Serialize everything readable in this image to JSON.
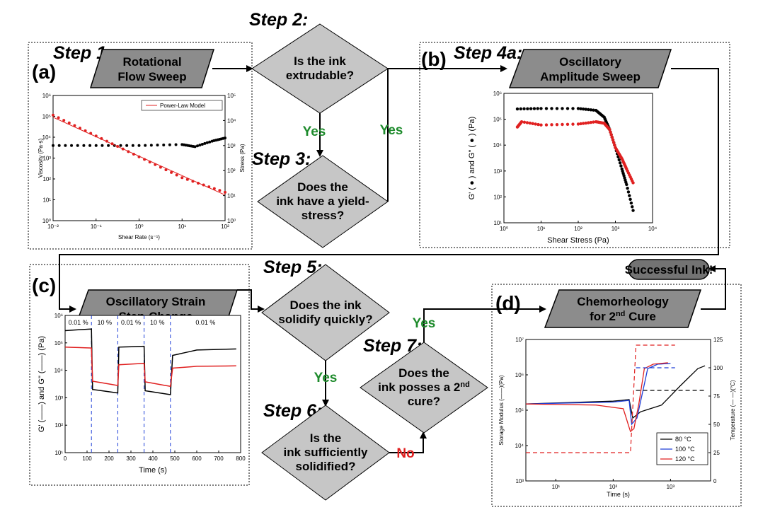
{
  "steps": {
    "s1": "Step 1:",
    "s2": "Step 2:",
    "s3": "Step 3:",
    "s4a": "Step 4a:",
    "s5": "Step 5:",
    "s6": "Step 6:",
    "s7": "Step 7:"
  },
  "panels": {
    "a": "(a)",
    "b": "(b)",
    "c": "(c)",
    "d": "(d)"
  },
  "boxes": {
    "rotational": [
      "Rotational",
      "Flow Sweep"
    ],
    "amplitude": [
      "Oscillatory",
      "Amplitude Sweep"
    ],
    "strain": [
      "Oscillatory Strain",
      "Step-Change"
    ],
    "chemo_l1": "Chemorheology",
    "chemo_l2_pre": "for 2",
    "chemo_l2_sup": "nd",
    "chemo_l2_post": " Cure",
    "success": "Successful Ink!"
  },
  "diamonds": {
    "extrudable": [
      "Is the ink",
      "extrudable?"
    ],
    "yield": [
      "Does the",
      "ink have a yield-",
      "stress?"
    ],
    "solidify": [
      "Does the ink",
      "solidify quickly?"
    ],
    "solidified": [
      "Is the",
      "ink sufficiently",
      "solidified?"
    ],
    "cure_l1": "Does the",
    "cure_l2_pre": "ink posses a 2",
    "cure_l2_sup": "nd",
    "cure_l3": "cure?"
  },
  "answers": {
    "yes": "Yes",
    "no": "No"
  },
  "colors": {
    "box": "#8c8c8c",
    "diamond": "#c6c6c6",
    "success": "#737373",
    "yes": "#1e8b2c",
    "no": "#e02020",
    "red": "#e02020",
    "blue": "#1f3fd8",
    "orange": "#f08a1c"
  },
  "chart_data": [
    {
      "panel": "(a)",
      "type": "scatter",
      "xlabel": "Shear Rate (s⁻¹)",
      "ylabel_left": "Viscosity (Pa·s)",
      "ylabel_right": "Stress (Pa)",
      "x_scale": "log",
      "y_scale": "log",
      "xlim": [
        0.01,
        100
      ],
      "ylim_left": [
        1,
        1000000
      ],
      "ylim_right": [
        1,
        100000
      ],
      "x_ticks": [
        "10⁻²",
        "10⁻¹",
        "10⁰",
        "10¹",
        "10²"
      ],
      "y_ticks_left": [
        "10⁰",
        "10¹",
        "10²",
        "10³",
        "10⁴",
        "10⁵",
        "10⁶"
      ],
      "y_ticks_right": [
        "10⁰",
        "10¹",
        "10²",
        "10³",
        "10⁴",
        "10⁵"
      ],
      "legend": "Power-Law Model",
      "series": [
        {
          "name": "Viscosity",
          "color": "#e02020",
          "x": [
            0.01,
            0.1,
            1,
            10,
            100
          ],
          "y": [
            100000,
            10000,
            1000,
            100,
            20
          ]
        },
        {
          "name": "Stress",
          "color": "#000000",
          "x": [
            0.01,
            0.1,
            1,
            10,
            20,
            50,
            100
          ],
          "y": [
            1000,
            1000,
            1000,
            1100,
            900,
            1500,
            2000
          ]
        },
        {
          "name": "Power-Law Model",
          "color": "#e02020",
          "x": [
            0.01,
            100
          ],
          "y": [
            90000,
            17
          ]
        }
      ]
    },
    {
      "panel": "(b)",
      "type": "scatter",
      "xlabel": "Shear Stress (Pa)",
      "ylabel": "G' (  ●  ) and G\" (  ●  ) (Pa)",
      "x_scale": "log",
      "y_scale": "log",
      "xlim": [
        1,
        10000
      ],
      "ylim": [
        10,
        1000000
      ],
      "x_ticks": [
        "10⁰",
        "10¹",
        "10²",
        "10³",
        "10⁴"
      ],
      "y_ticks": [
        "10¹",
        "10²",
        "10³",
        "10⁴",
        "10⁵",
        "10⁶"
      ],
      "series": [
        {
          "name": "G'",
          "color": "#000000",
          "x": [
            2.3,
            10,
            100,
            300,
            500,
            700,
            1000,
            1500,
            2000,
            3000
          ],
          "y": [
            250000,
            260000,
            260000,
            220000,
            120000,
            40000,
            8000,
            1200,
            300,
            30
          ]
        },
        {
          "name": "G\"",
          "color": "#e02020",
          "x": [
            2.3,
            3,
            10,
            100,
            300,
            500,
            700,
            1000,
            1500,
            2000,
            3000
          ],
          "y": [
            50000,
            80000,
            60000,
            65000,
            80000,
            70000,
            40000,
            8000,
            3000,
            1200,
            350
          ]
        }
      ]
    },
    {
      "panel": "(c)",
      "type": "line",
      "xlabel": "Time (s)",
      "ylabel": "G' (——) and G\" (——) (Pa)",
      "y_scale": "log",
      "xlim": [
        0,
        800
      ],
      "ylim": [
        10,
        1000000
      ],
      "x_ticks": [
        "0",
        "100",
        "200",
        "300",
        "400",
        "500",
        "600",
        "700",
        "800"
      ],
      "y_ticks": [
        "10¹",
        "10²",
        "10³",
        "10⁴",
        "10⁵",
        "10⁶"
      ],
      "annotations": [
        {
          "text": "0.01 %",
          "color": "#f08a1c"
        },
        {
          "text": "10 %",
          "color": "#1f3fd8"
        },
        {
          "text": "0.01 %",
          "color": "#f08a1c"
        },
        {
          "text": "10 %",
          "color": "#1f3fd8"
        },
        {
          "text": "0.01 %",
          "color": "#f08a1c"
        }
      ],
      "step_times": [
        120,
        240,
        360,
        480
      ],
      "series": [
        {
          "name": "G'",
          "color": "#000000",
          "x": [
            0,
            120,
            125,
            240,
            245,
            360,
            365,
            480,
            490,
            600,
            780
          ],
          "y": [
            280000,
            320000,
            2000,
            1500,
            70000,
            75000,
            1800,
            1300,
            35000,
            55000,
            60000
          ]
        },
        {
          "name": "G\"",
          "color": "#e02020",
          "x": [
            0,
            120,
            125,
            240,
            245,
            360,
            365,
            480,
            490,
            600,
            780
          ],
          "y": [
            70000,
            65000,
            4000,
            2800,
            16000,
            18000,
            3800,
            2600,
            12000,
            14000,
            14500
          ]
        }
      ]
    },
    {
      "panel": "(d)",
      "type": "line",
      "xlabel": "Time (s)",
      "ylabel_left": "Storage Modulus (——)(Pa)",
      "ylabel_right": "Temperature (— —)(°C)",
      "x_scale": "log",
      "y_scale": "log",
      "xlim": [
        3,
        5000
      ],
      "ylim_left": [
        1000,
        10000000
      ],
      "ylim_right": [
        0,
        125
      ],
      "x_ticks": [
        "10¹",
        "10²",
        "10³"
      ],
      "y_ticks_left": [
        "10³",
        "10⁴",
        "10⁵",
        "10⁶",
        "10⁷"
      ],
      "y_ticks_right": [
        "0",
        "25",
        "50",
        "75",
        "100",
        "125"
      ],
      "legend": [
        "80 °C",
        "100 °C",
        "120 °C"
      ],
      "series": [
        {
          "name": "80 °C",
          "color": "#000000",
          "x": [
            3,
            100,
            190,
            220,
            300,
            700,
            1500,
            3000,
            4000
          ],
          "y": [
            150000,
            180000,
            200000,
            60000,
            90000,
            140000,
            500000,
            1500000,
            1800000
          ]
        },
        {
          "name": "100 °C",
          "color": "#1f3fd8",
          "x": [
            3,
            100,
            190,
            210,
            260,
            400,
            600,
            1000
          ],
          "y": [
            150000,
            170000,
            190000,
            40000,
            60000,
            1500000,
            2000000,
            2100000
          ]
        },
        {
          "name": "120 °C",
          "color": "#e02020",
          "x": [
            3,
            50,
            150,
            200,
            230,
            280,
            350,
            500,
            900
          ],
          "y": [
            150000,
            140000,
            110000,
            25000,
            30000,
            150000,
            1500000,
            2000000,
            2200000
          ]
        },
        {
          "name": "80 °C temperature",
          "color": "#000000",
          "x": [
            250,
            4000
          ],
          "y": [
            80,
            80
          ]
        },
        {
          "name": "100 °C temperature",
          "color": "#1f3fd8",
          "x": [
            250,
            1200
          ],
          "y": [
            100,
            100
          ]
        },
        {
          "name": "120 °C temperature",
          "color": "#e02020",
          "x": [
            3,
            200,
            250,
            1200
          ],
          "y": [
            25,
            25,
            120,
            120
          ]
        }
      ]
    }
  ]
}
